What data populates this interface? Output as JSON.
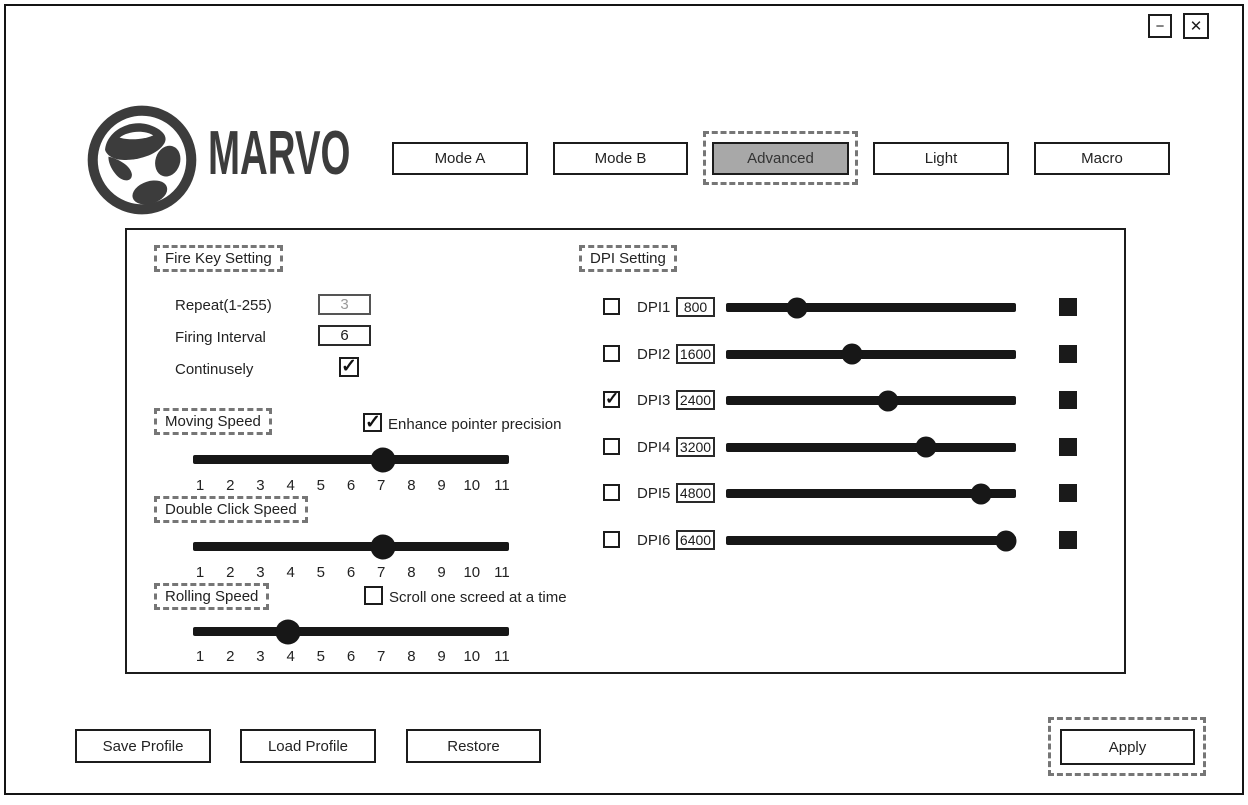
{
  "window": {
    "minimize_label": "−",
    "close_label": "✕"
  },
  "brand": {
    "name": "MARVO",
    "logo_icon": "marvo-falcon-logo"
  },
  "tabs": [
    {
      "label": "Mode A",
      "active": false
    },
    {
      "label": "Mode B",
      "active": false
    },
    {
      "label": "Advanced",
      "active": true
    },
    {
      "label": "Light",
      "active": false
    },
    {
      "label": "Macro",
      "active": false
    }
  ],
  "fire_key": {
    "title": "Fire Key Setting",
    "repeat_label": "Repeat(1-255)",
    "repeat_value": "3",
    "repeat_disabled": true,
    "interval_label": "Firing Interval",
    "interval_value": "6",
    "continuously_label": "Continusely",
    "continuously_checked": true
  },
  "speed": {
    "scale": [
      "1",
      "2",
      "3",
      "4",
      "5",
      "6",
      "7",
      "8",
      "9",
      "10",
      "11"
    ],
    "moving": {
      "title": "Moving Speed",
      "checkbox_label": "Enhance pointer precision",
      "checkbox_checked": true,
      "value": 7,
      "percent": 60
    },
    "double_click": {
      "title": "Double Click Speed",
      "value": 7,
      "percent": 60
    },
    "rolling": {
      "title": "Rolling Speed",
      "checkbox_label": "Scroll one screed at a time",
      "checkbox_checked": false,
      "value": 4,
      "percent": 30
    }
  },
  "dpi": {
    "title": "DPI Setting",
    "rows": [
      {
        "label": "DPI1",
        "checked": false,
        "value": "800",
        "percent": 24.5,
        "color": "#1a1a1a"
      },
      {
        "label": "DPI2",
        "checked": false,
        "value": "1600",
        "percent": 43.4,
        "color": "#1a1a1a"
      },
      {
        "label": "DPI3",
        "checked": true,
        "value": "2400",
        "percent": 55.9,
        "color": "#1a1a1a"
      },
      {
        "label": "DPI4",
        "checked": false,
        "value": "3200",
        "percent": 69.0,
        "color": "#1a1a1a"
      },
      {
        "label": "DPI5",
        "checked": false,
        "value": "4800",
        "percent": 87.9,
        "color": "#1a1a1a"
      },
      {
        "label": "DPI6",
        "checked": false,
        "value": "6400",
        "percent": 96.6,
        "color": "#1a1a1a"
      }
    ]
  },
  "footer": {
    "save_label": "Save Profile",
    "load_label": "Load Profile",
    "restore_label": "Restore",
    "apply_label": "Apply"
  },
  "colors": {
    "active_tab_bg": "#a8a8a8",
    "dashed_outline": "#767676",
    "ink": "#1a1a1a"
  }
}
